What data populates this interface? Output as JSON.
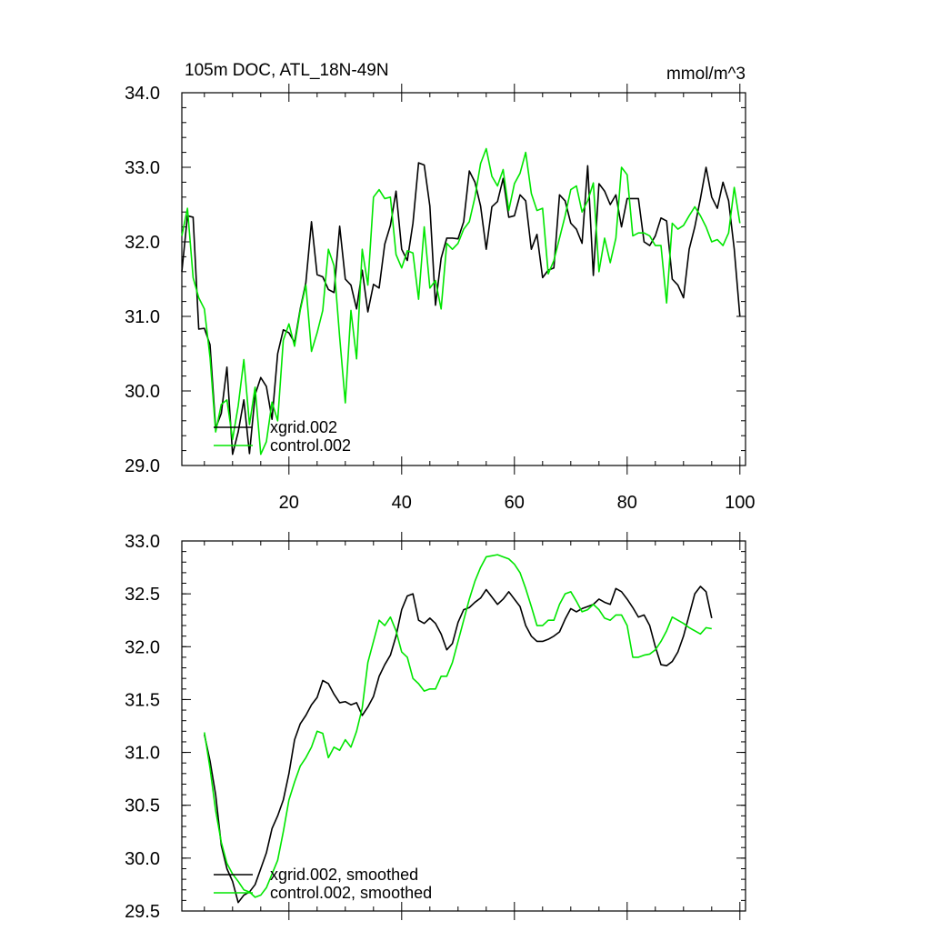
{
  "chart_data": [
    {
      "type": "line",
      "title": "105m DOC, ATL_18N-49N",
      "units": "mmol/m^3",
      "xlim": [
        1,
        101
      ],
      "ylim": [
        29.0,
        34.0
      ],
      "xticks": [
        20,
        40,
        60,
        80,
        100
      ],
      "xtick_labels": [
        "20",
        "40",
        "60",
        "80",
        "100"
      ],
      "yticks": [
        29.0,
        30.0,
        31.0,
        32.0,
        33.0,
        34.0
      ],
      "ytick_labels": [
        "29.0",
        "30.0",
        "31.0",
        "32.0",
        "33.0",
        "34.0"
      ],
      "legend": "bottom-left",
      "series": [
        {
          "name": "xgrid.002",
          "color": "#000000",
          "x_start": 1,
          "values": [
            31.6,
            32.35,
            32.33,
            30.83,
            30.84,
            30.62,
            29.5,
            29.7,
            30.32,
            29.15,
            29.45,
            29.88,
            29.16,
            29.95,
            30.18,
            30.06,
            29.62,
            30.5,
            30.82,
            30.78,
            30.65,
            31.1,
            31.45,
            32.27,
            31.56,
            31.53,
            31.36,
            31.32,
            32.21,
            31.5,
            31.42,
            31.1,
            31.62,
            31.06,
            31.43,
            31.38,
            31.97,
            32.22,
            32.68,
            31.9,
            31.75,
            32.25,
            33.06,
            33.03,
            32.48,
            31.15,
            31.78,
            32.05,
            32.05,
            32.04,
            32.27,
            32.95,
            32.8,
            32.48,
            31.9,
            32.47,
            32.54,
            32.85,
            32.33,
            32.35,
            32.63,
            32.55,
            31.9,
            32.1,
            31.52,
            31.62,
            31.65,
            32.63,
            32.55,
            32.25,
            32.17,
            31.98,
            33.02,
            31.55,
            32.78,
            32.68,
            32.5,
            32.63,
            32.2,
            32.58,
            32.58,
            32.58,
            32.0,
            31.95,
            32.08,
            32.32,
            32.28,
            31.5,
            31.42,
            31.25,
            31.9,
            32.2,
            32.58,
            33.0,
            32.6,
            32.45,
            32.8,
            32.55,
            31.9,
            31.0
          ]
        },
        {
          "name": "control.002",
          "color": "#00e600",
          "x_start": 1,
          "values": [
            32.08,
            32.45,
            31.52,
            31.25,
            31.1,
            30.45,
            29.45,
            29.82,
            29.88,
            29.35,
            29.8,
            30.42,
            29.55,
            30.05,
            29.15,
            29.32,
            29.85,
            29.6,
            30.68,
            30.9,
            30.6,
            31.08,
            31.42,
            30.53,
            30.78,
            31.08,
            31.9,
            31.68,
            30.72,
            29.84,
            31.08,
            30.43,
            31.9,
            31.42,
            32.6,
            32.7,
            32.58,
            32.6,
            31.83,
            31.65,
            31.88,
            31.85,
            31.23,
            32.2,
            31.38,
            31.48,
            31.1,
            31.98,
            31.9,
            31.98,
            32.17,
            32.27,
            32.6,
            33.05,
            33.25,
            32.88,
            32.75,
            32.97,
            32.42,
            32.78,
            32.92,
            33.2,
            32.65,
            32.42,
            32.45,
            31.57,
            31.75,
            32.05,
            32.35,
            32.7,
            32.75,
            32.4,
            32.55,
            32.79,
            31.6,
            32.05,
            31.72,
            32.05,
            33.0,
            32.9,
            32.08,
            32.12,
            32.12,
            32.08,
            31.95,
            31.95,
            31.18,
            32.25,
            32.17,
            32.22,
            32.35,
            32.47,
            32.35,
            32.2,
            32.0,
            32.03,
            31.95,
            32.12,
            32.73,
            32.25
          ]
        }
      ]
    },
    {
      "type": "line",
      "title": "",
      "xlim": [
        1,
        101
      ],
      "ylim": [
        29.5,
        33.0
      ],
      "xticks": [
        20,
        40,
        60,
        80,
        100
      ],
      "xtick_labels": [],
      "yticks": [
        29.5,
        30.0,
        30.5,
        31.0,
        31.5,
        32.0,
        32.5,
        33.0
      ],
      "ytick_labels": [
        "29.5",
        "30.0",
        "30.5",
        "31.0",
        "31.5",
        "32.0",
        "32.5",
        "33.0"
      ],
      "legend": "bottom-left",
      "series": [
        {
          "name": "xgrid.002, smoothed",
          "color": "#000000",
          "x_start": 5,
          "values": [
            31.17,
            30.92,
            30.6,
            30.12,
            29.9,
            29.78,
            29.58,
            29.65,
            29.68,
            29.75,
            29.9,
            30.05,
            30.28,
            30.4,
            30.55,
            30.8,
            31.12,
            31.27,
            31.35,
            31.45,
            31.52,
            31.68,
            31.65,
            31.55,
            31.47,
            31.48,
            31.45,
            31.47,
            31.35,
            31.43,
            31.53,
            31.72,
            31.83,
            31.92,
            32.1,
            32.35,
            32.48,
            32.5,
            32.25,
            32.22,
            32.27,
            32.22,
            32.12,
            31.97,
            32.03,
            32.23,
            32.35,
            32.37,
            32.42,
            32.46,
            32.54,
            32.47,
            32.4,
            32.45,
            32.52,
            32.45,
            32.38,
            32.2,
            32.1,
            32.05,
            32.05,
            32.07,
            32.1,
            32.14,
            32.26,
            32.36,
            32.33,
            32.36,
            32.38,
            32.4,
            32.45,
            32.42,
            32.4,
            32.55,
            32.52,
            32.45,
            32.37,
            32.28,
            32.3,
            32.2,
            32.0,
            31.83,
            31.82,
            31.86,
            31.95,
            32.1,
            32.3,
            32.5,
            32.57,
            32.52,
            32.27
          ]
        },
        {
          "name": "control.002, smoothed",
          "color": "#00e600",
          "x_start": 5,
          "values": [
            31.19,
            30.85,
            30.45,
            30.15,
            29.95,
            29.85,
            29.78,
            29.7,
            29.68,
            29.63,
            29.65,
            29.72,
            29.85,
            29.98,
            30.25,
            30.55,
            30.72,
            30.87,
            30.95,
            31.05,
            31.2,
            31.18,
            30.95,
            31.05,
            31.02,
            31.12,
            31.05,
            31.2,
            31.42,
            31.85,
            32.05,
            32.25,
            32.2,
            32.28,
            32.15,
            31.95,
            31.9,
            31.7,
            31.65,
            31.58,
            31.6,
            31.6,
            31.72,
            31.72,
            31.85,
            32.05,
            32.25,
            32.45,
            32.62,
            32.75,
            32.85,
            32.86,
            32.87,
            32.85,
            32.83,
            32.78,
            32.7,
            32.55,
            32.38,
            32.2,
            32.2,
            32.25,
            32.25,
            32.4,
            32.5,
            32.52,
            32.43,
            32.33,
            32.35,
            32.4,
            32.35,
            32.27,
            32.25,
            32.3,
            32.3,
            32.2,
            31.9,
            31.9,
            31.92,
            31.93,
            31.97,
            32.05,
            32.15,
            32.28,
            32.25,
            32.22,
            32.18,
            32.15,
            32.12,
            32.18,
            32.17
          ]
        }
      ]
    }
  ]
}
